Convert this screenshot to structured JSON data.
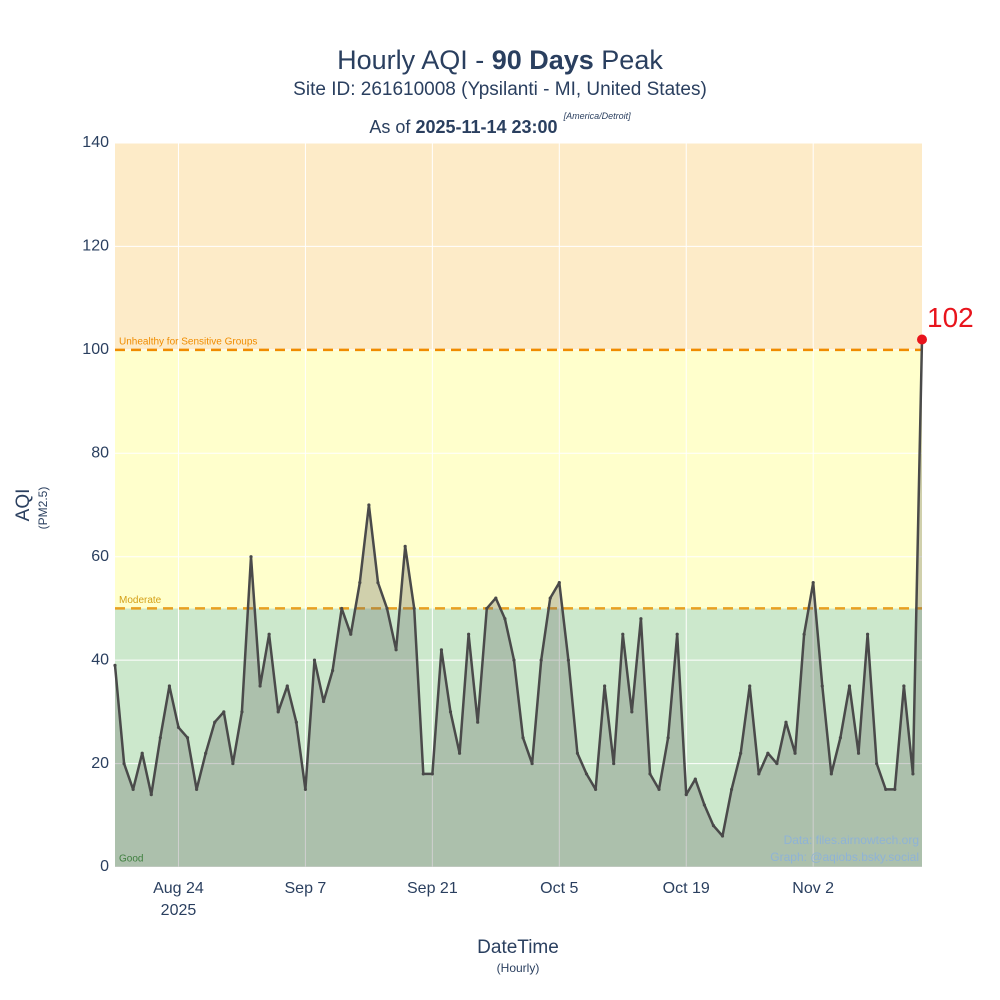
{
  "chart_data": {
    "type": "line",
    "title_parts": [
      "Hourly AQI - ",
      "90 Days",
      " Peak"
    ],
    "subtitle": "Site ID: 261610008 (Ypsilanti - MI, United States)",
    "asof_parts": [
      "As of ",
      "2025-11-14 23:00",
      "[America/Detroit]"
    ],
    "y_label": "AQI",
    "y_sublabel": "(PM2.5)",
    "x_label": "DateTime",
    "x_sublabel": "(Hourly)",
    "credits": [
      "Data: files.airnowtech.org",
      "Graph: @aqiobs.bsky.social"
    ],
    "xlim": [
      "2025-08-17",
      "2025-11-14"
    ],
    "xticks": [
      {
        "value": "2025-08-24",
        "label": "Aug 24"
      },
      {
        "value": "2025-09-07",
        "label": "Sep 7"
      },
      {
        "value": "2025-09-21",
        "label": "Sep 21"
      },
      {
        "value": "2025-10-05",
        "label": "Oct 5"
      },
      {
        "value": "2025-10-19",
        "label": "Oct 19"
      },
      {
        "value": "2025-11-02",
        "label": "Nov 2"
      }
    ],
    "x_year_label": "2025",
    "ylim": [
      0,
      140
    ],
    "yticks": [
      0,
      20,
      40,
      60,
      80,
      100,
      120,
      140
    ],
    "grid": true,
    "bands": [
      {
        "from": 0,
        "to": 50,
        "color": "#cce8cc",
        "label": "Good",
        "label_color": "#2e8b2e"
      },
      {
        "from": 50,
        "to": 100,
        "color": "#ffffcc",
        "label": "Moderate",
        "label_color": "#d4a017",
        "line_color": "#e8a020"
      },
      {
        "from": 100,
        "to": 140,
        "color": "#fdebc8",
        "label": "Unhealthy for Sensitive Groups",
        "label_color": "#f08c00",
        "line_color": "#f08c00"
      }
    ],
    "peak_color": "#e8141c",
    "x": [
      "2025-08-17",
      "2025-08-18",
      "2025-08-19",
      "2025-08-20",
      "2025-08-21",
      "2025-08-22",
      "2025-08-23",
      "2025-08-24",
      "2025-08-25",
      "2025-08-26",
      "2025-08-27",
      "2025-08-28",
      "2025-08-29",
      "2025-08-30",
      "2025-08-31",
      "2025-09-01",
      "2025-09-02",
      "2025-09-03",
      "2025-09-04",
      "2025-09-05",
      "2025-09-06",
      "2025-09-07",
      "2025-09-08",
      "2025-09-09",
      "2025-09-10",
      "2025-09-11",
      "2025-09-12",
      "2025-09-13",
      "2025-09-14",
      "2025-09-15",
      "2025-09-16",
      "2025-09-17",
      "2025-09-18",
      "2025-09-19",
      "2025-09-20",
      "2025-09-21",
      "2025-09-22",
      "2025-09-23",
      "2025-09-24",
      "2025-09-25",
      "2025-09-26",
      "2025-09-27",
      "2025-09-28",
      "2025-09-29",
      "2025-09-30",
      "2025-10-01",
      "2025-10-02",
      "2025-10-03",
      "2025-10-04",
      "2025-10-05",
      "2025-10-06",
      "2025-10-07",
      "2025-10-08",
      "2025-10-09",
      "2025-10-10",
      "2025-10-11",
      "2025-10-12",
      "2025-10-13",
      "2025-10-14",
      "2025-10-15",
      "2025-10-16",
      "2025-10-17",
      "2025-10-18",
      "2025-10-19",
      "2025-10-20",
      "2025-10-21",
      "2025-10-22",
      "2025-10-23",
      "2025-10-24",
      "2025-10-25",
      "2025-10-26",
      "2025-10-27",
      "2025-10-28",
      "2025-10-29",
      "2025-10-30",
      "2025-10-31",
      "2025-11-01",
      "2025-11-02",
      "2025-11-03",
      "2025-11-04",
      "2025-11-05",
      "2025-11-06",
      "2025-11-07",
      "2025-11-08",
      "2025-11-09",
      "2025-11-10",
      "2025-11-11",
      "2025-11-12",
      "2025-11-13",
      "2025-11-14"
    ],
    "series": [
      {
        "name": "AQI",
        "color": "#4a4a4a",
        "values": [
          39,
          20,
          15,
          22,
          14,
          25,
          35,
          27,
          25,
          15,
          22,
          28,
          30,
          20,
          30,
          60,
          35,
          45,
          30,
          35,
          28,
          15,
          40,
          32,
          38,
          50,
          45,
          55,
          70,
          55,
          50,
          42,
          62,
          50,
          18,
          18,
          42,
          30,
          22,
          45,
          28,
          50,
          52,
          48,
          40,
          25,
          20,
          40,
          52,
          55,
          40,
          22,
          18,
          15,
          35,
          20,
          45,
          30,
          48,
          18,
          15,
          25,
          45,
          14,
          17,
          12,
          8,
          6,
          15,
          22,
          35,
          18,
          22,
          20,
          28,
          22,
          45,
          55,
          35,
          18,
          25,
          35,
          22,
          45,
          20,
          15,
          15,
          35,
          18,
          102
        ]
      }
    ]
  }
}
